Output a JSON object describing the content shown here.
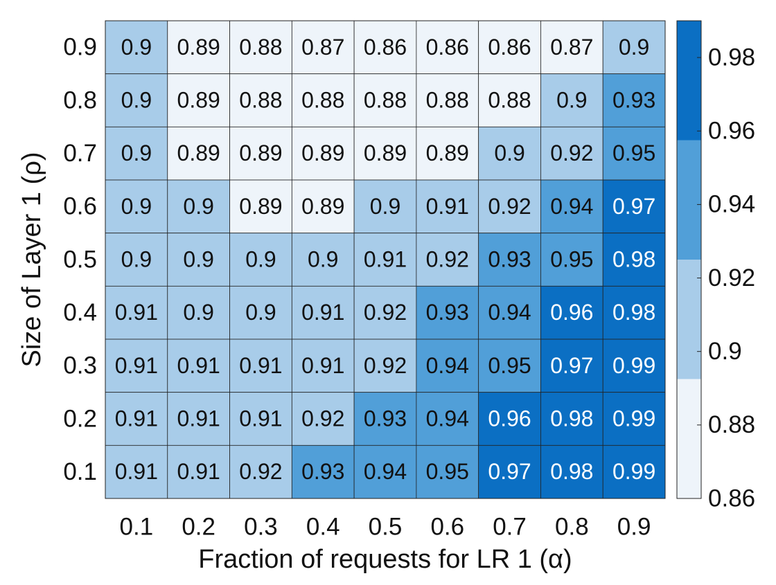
{
  "chart_data": {
    "type": "heatmap",
    "x_label": "Fraction of requests for LR 1 (α)",
    "y_label": "Size of Layer 1 (ρ)",
    "x": [
      0.1,
      0.2,
      0.3,
      0.4,
      0.5,
      0.6,
      0.7,
      0.8,
      0.9
    ],
    "y": [
      0.9,
      0.8,
      0.7,
      0.6,
      0.5,
      0.4,
      0.3,
      0.2,
      0.1
    ],
    "z": [
      [
        0.9,
        0.89,
        0.88,
        0.87,
        0.86,
        0.86,
        0.86,
        0.87,
        0.9
      ],
      [
        0.9,
        0.89,
        0.88,
        0.88,
        0.88,
        0.88,
        0.88,
        0.9,
        0.93
      ],
      [
        0.9,
        0.89,
        0.89,
        0.89,
        0.89,
        0.89,
        0.9,
        0.92,
        0.95
      ],
      [
        0.9,
        0.9,
        0.89,
        0.89,
        0.9,
        0.91,
        0.92,
        0.94,
        0.97
      ],
      [
        0.9,
        0.9,
        0.9,
        0.9,
        0.91,
        0.92,
        0.93,
        0.95,
        0.98
      ],
      [
        0.91,
        0.9,
        0.9,
        0.91,
        0.92,
        0.93,
        0.94,
        0.96,
        0.98
      ],
      [
        0.91,
        0.91,
        0.91,
        0.91,
        0.92,
        0.94,
        0.95,
        0.97,
        0.99
      ],
      [
        0.91,
        0.91,
        0.91,
        0.92,
        0.93,
        0.94,
        0.96,
        0.98,
        0.99
      ],
      [
        0.91,
        0.91,
        0.92,
        0.93,
        0.94,
        0.95,
        0.97,
        0.98,
        0.99
      ]
    ],
    "colormap": [
      "#eef4fa",
      "#a8cce9",
      "#519fd8",
      "#0b6fc3"
    ],
    "clim": [
      0.86,
      0.99
    ],
    "cticks": [
      0.86,
      0.88,
      0.9,
      0.92,
      0.94,
      0.96,
      0.98
    ]
  }
}
